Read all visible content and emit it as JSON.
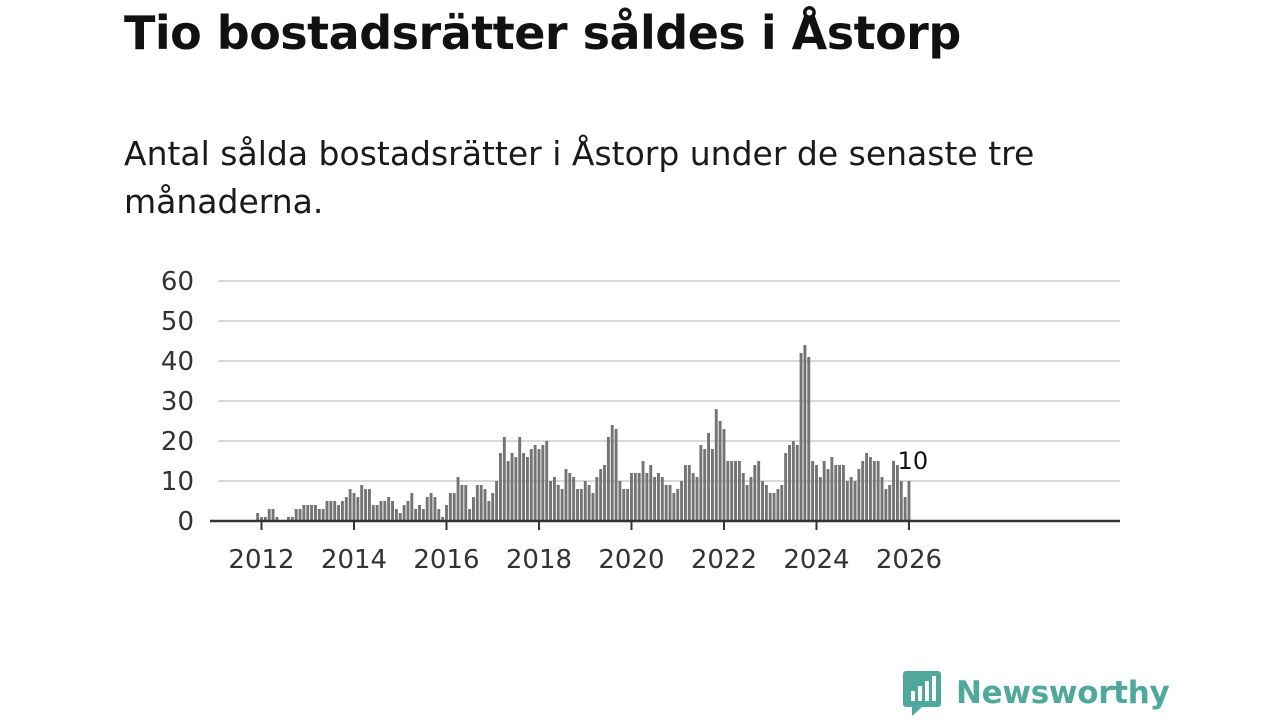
{
  "title": "Tio bostadsrätter såldes i Åstorp",
  "subtitle": "Antal sålda bostadsrätter i Åstorp under de senaste tre månaderna.",
  "brand": {
    "name": "Newsworthy",
    "icon": "newsworthy-logo-icon",
    "color": "#4ea89c"
  },
  "chart_data": {
    "type": "bar",
    "title": "Tio bostadsrätter såldes i Åstorp",
    "xlabel": "",
    "ylabel": "",
    "ylim": [
      0,
      60
    ],
    "yticks": [
      "0",
      "10",
      "20",
      "30",
      "40",
      "50",
      "60"
    ],
    "xticks": [
      "2012",
      "2014",
      "2016",
      "2018",
      "2020",
      "2022",
      "2024",
      "2026"
    ],
    "start_month": "2011-12",
    "values": [
      2,
      1,
      1,
      3,
      3,
      1,
      0,
      0,
      1,
      1,
      3,
      3,
      4,
      4,
      4,
      4,
      3,
      3,
      5,
      5,
      5,
      4,
      5,
      6,
      8,
      7,
      6,
      9,
      8,
      8,
      4,
      4,
      5,
      5,
      6,
      5,
      3,
      2,
      4,
      5,
      7,
      3,
      4,
      3,
      6,
      7,
      6,
      3,
      1,
      4,
      7,
      7,
      11,
      9,
      9,
      3,
      6,
      9,
      9,
      8,
      5,
      7,
      10,
      17,
      21,
      15,
      17,
      16,
      21,
      17,
      16,
      18,
      19,
      18,
      19,
      20,
      10,
      11,
      9,
      8,
      13,
      12,
      11,
      8,
      8,
      10,
      9,
      7,
      11,
      13,
      14,
      21,
      24,
      23,
      10,
      8,
      8,
      12,
      12,
      12,
      15,
      12,
      14,
      11,
      12,
      11,
      9,
      9,
      7,
      8,
      10,
      14,
      14,
      12,
      11,
      19,
      18,
      22,
      18,
      28,
      25,
      23,
      15,
      15,
      15,
      15,
      12,
      9,
      11,
      14,
      15,
      10,
      9,
      7,
      7,
      8,
      9,
      17,
      19,
      20,
      19,
      42,
      44,
      41,
      15,
      14,
      11,
      15,
      13,
      16,
      14,
      14,
      14,
      10,
      11,
      10,
      13,
      15,
      17,
      16,
      15,
      15,
      11,
      8,
      9,
      15,
      14,
      10,
      6,
      10
    ],
    "highlight": {
      "index": 170,
      "value": 10,
      "label": "10",
      "color": "#1aa39a"
    },
    "bar_color": "#747474"
  }
}
